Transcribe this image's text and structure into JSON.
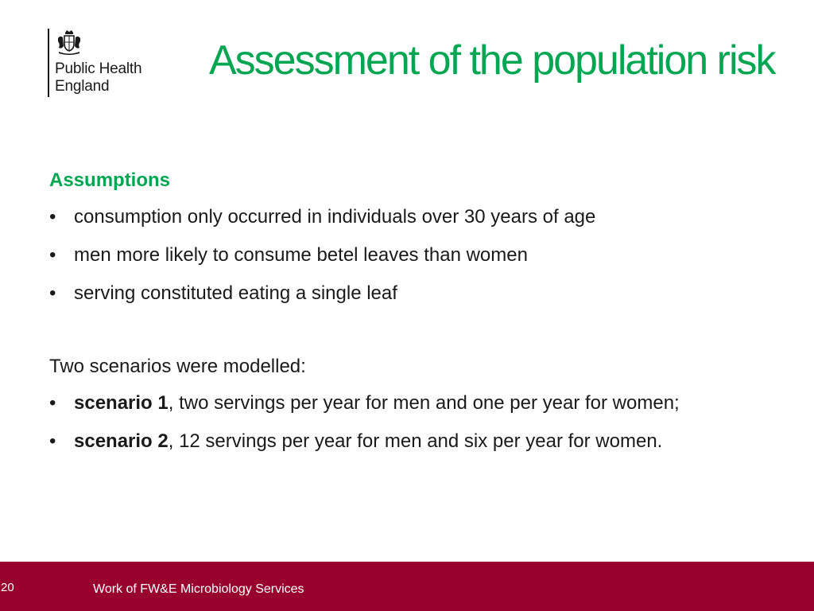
{
  "logo": {
    "crest_icon": "royal-coat-of-arms-icon",
    "line1": "Public Health",
    "line2": "England"
  },
  "title": "Assessment of the population risk",
  "assumptions": {
    "heading": "Assumptions",
    "items": [
      "consumption only occurred in individuals over 30 years of age",
      "men more likely to consume betel leaves than women",
      "serving constituted eating a single leaf"
    ]
  },
  "scenarios": {
    "intro": "Two scenarios were modelled:",
    "items": [
      {
        "label": "scenario 1",
        "text": ", two servings per year for men and one per year for women;"
      },
      {
        "label": "scenario 2",
        "text": ", 12 servings per year for men and six per year for women."
      }
    ]
  },
  "footer": {
    "page_number": "20",
    "text": "Work of FW&E Microbiology Services",
    "color": "#98002e"
  },
  "colors": {
    "accent_green": "#00a651",
    "text": "#1a1a1a"
  }
}
